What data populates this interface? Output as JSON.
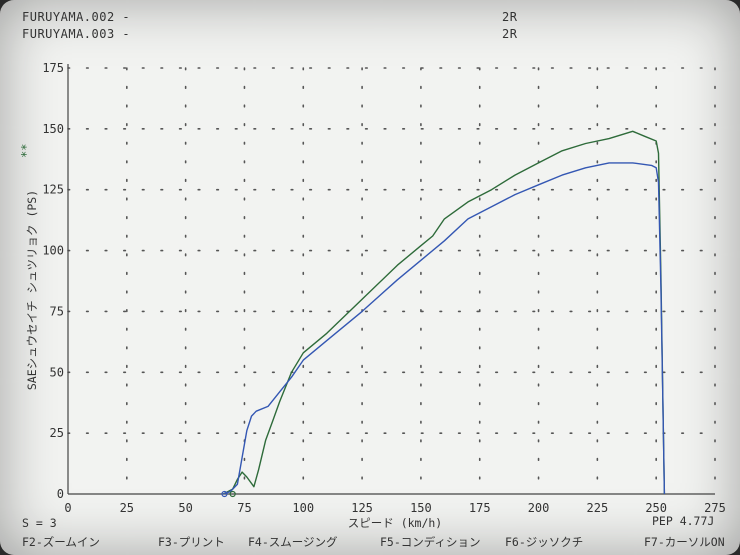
{
  "header": {
    "runs": [
      {
        "name": "FURUYAMA.002 -",
        "gear": "2R"
      },
      {
        "name": "FURUYAMA.003 -",
        "gear": "2R"
      }
    ]
  },
  "side_marker": "**",
  "status": {
    "smoothing": "S = 3",
    "pep": "PEP  4.77J"
  },
  "function_keys": [
    "F2-ズームイン",
    "F3-プリント",
    "F4-スムージング",
    "F5-コンディション",
    "F6-ジッソクチ",
    "F7-カーソルON"
  ],
  "colors": {
    "background": "#f2f3f1",
    "axis": "#444444",
    "grid": "#555555",
    "series_green": "#2e6b3a",
    "series_blue": "#3457b3"
  },
  "chart_data": {
    "type": "line",
    "title": "",
    "xlabel": "スピード (km/h)",
    "ylabel": "SAEシュウセイチ シュツリョク (PS)",
    "xlim": [
      0,
      275
    ],
    "ylim": [
      0,
      175
    ],
    "x_ticks": [
      "0",
      "25",
      "50",
      "75",
      "100",
      "125",
      "150",
      "175",
      "200",
      "225",
      "250",
      "275"
    ],
    "y_ticks": [
      "0",
      "25",
      "50",
      "75",
      "100",
      "125",
      "150",
      "175"
    ],
    "grid": true,
    "series": [
      {
        "color": "#2e6b3a",
        "points": [
          [
            66,
            0
          ],
          [
            70,
            2
          ],
          [
            72,
            6
          ],
          [
            74,
            9
          ],
          [
            76,
            7
          ],
          [
            79,
            3
          ],
          [
            81,
            10
          ],
          [
            84,
            22
          ],
          [
            87,
            30
          ],
          [
            90,
            38
          ],
          [
            95,
            50
          ],
          [
            100,
            58
          ],
          [
            110,
            66
          ],
          [
            125,
            80
          ],
          [
            140,
            94
          ],
          [
            150,
            102
          ],
          [
            155,
            106
          ],
          [
            160,
            113
          ],
          [
            170,
            120
          ],
          [
            180,
            125
          ],
          [
            190,
            131
          ],
          [
            200,
            136
          ],
          [
            210,
            141
          ],
          [
            220,
            144
          ],
          [
            230,
            146
          ],
          [
            240,
            149
          ],
          [
            245,
            147
          ],
          [
            250,
            145
          ],
          [
            251,
            140
          ],
          [
            252,
            90
          ],
          [
            253,
            30
          ],
          [
            253.5,
            0
          ]
        ]
      },
      {
        "color": "#3457b3",
        "points": [
          [
            66,
            0
          ],
          [
            69,
            1
          ],
          [
            72,
            4
          ],
          [
            74,
            15
          ],
          [
            76,
            26
          ],
          [
            78,
            32
          ],
          [
            80,
            34
          ],
          [
            85,
            36
          ],
          [
            90,
            42
          ],
          [
            95,
            48
          ],
          [
            100,
            55
          ],
          [
            110,
            63
          ],
          [
            125,
            75
          ],
          [
            140,
            88
          ],
          [
            150,
            96
          ],
          [
            160,
            104
          ],
          [
            170,
            113
          ],
          [
            180,
            118
          ],
          [
            190,
            123
          ],
          [
            200,
            127
          ],
          [
            210,
            131
          ],
          [
            220,
            134
          ],
          [
            230,
            136
          ],
          [
            240,
            136
          ],
          [
            248,
            135
          ],
          [
            250,
            134
          ],
          [
            251,
            128
          ],
          [
            252,
            85
          ],
          [
            253,
            30
          ],
          [
            253.5,
            0
          ]
        ]
      }
    ]
  }
}
